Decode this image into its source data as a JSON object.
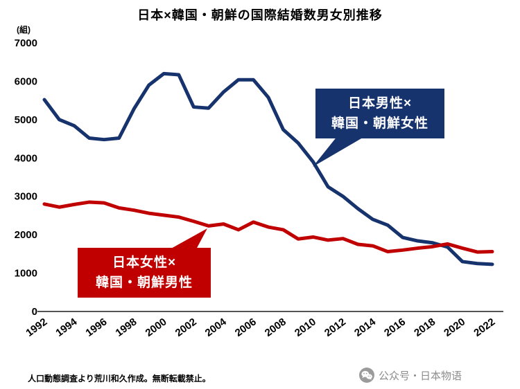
{
  "chart_data": {
    "type": "line",
    "title": "日本×韓国・朝鮮の国際結婚数男女別推移",
    "ylabel_unit": "(組)",
    "x": [
      1992,
      1993,
      1994,
      1995,
      1996,
      1997,
      1998,
      1999,
      2000,
      2001,
      2002,
      2003,
      2004,
      2005,
      2006,
      2007,
      2008,
      2009,
      2010,
      2011,
      2012,
      2013,
      2014,
      2015,
      2016,
      2017,
      2018,
      2019,
      2020,
      2021,
      2022
    ],
    "series": [
      {
        "name": "日本男性×韓国・朝鮮女性",
        "color": "#17336e",
        "values": [
          5520,
          5000,
          4840,
          4520,
          4480,
          4520,
          5280,
          5900,
          6200,
          6170,
          5330,
          5300,
          5720,
          6040,
          6040,
          5580,
          4740,
          4390,
          3900,
          3250,
          3000,
          2680,
          2400,
          2250,
          1930,
          1840,
          1790,
          1680,
          1300,
          1250,
          1230
        ]
      },
      {
        "name": "日本女性×韓国・朝鮮男性",
        "color": "#c00000",
        "values": [
          2800,
          2720,
          2790,
          2850,
          2830,
          2700,
          2640,
          2560,
          2510,
          2460,
          2350,
          2230,
          2280,
          2130,
          2330,
          2200,
          2130,
          1890,
          1940,
          1860,
          1900,
          1750,
          1710,
          1560,
          1600,
          1650,
          1690,
          1760,
          1650,
          1550,
          1560
        ]
      }
    ],
    "ylim": [
      0,
      7000
    ],
    "yticks": [
      0,
      1000,
      2000,
      3000,
      4000,
      5000,
      6000,
      7000
    ],
    "xticks": [
      "1992",
      "1994",
      "1996",
      "1998",
      "2000",
      "2002",
      "2004",
      "2006",
      "2008",
      "2010",
      "2012",
      "2014",
      "2016",
      "2018",
      "2020",
      "2022"
    ],
    "grid": false,
    "legend_position": "callouts-on-chart"
  },
  "callouts": {
    "men": {
      "line1": "日本男性×",
      "line2": "韓国・朝鮮女性",
      "color": "#17336e"
    },
    "women": {
      "line1": "日本女性×",
      "line2": "韓国・朝鮮男性",
      "color": "#c00000"
    }
  },
  "footer": {
    "source": "人口動態調査より荒川和久作成。無断転載禁止。",
    "watermark": "公众号・日本物语"
  }
}
